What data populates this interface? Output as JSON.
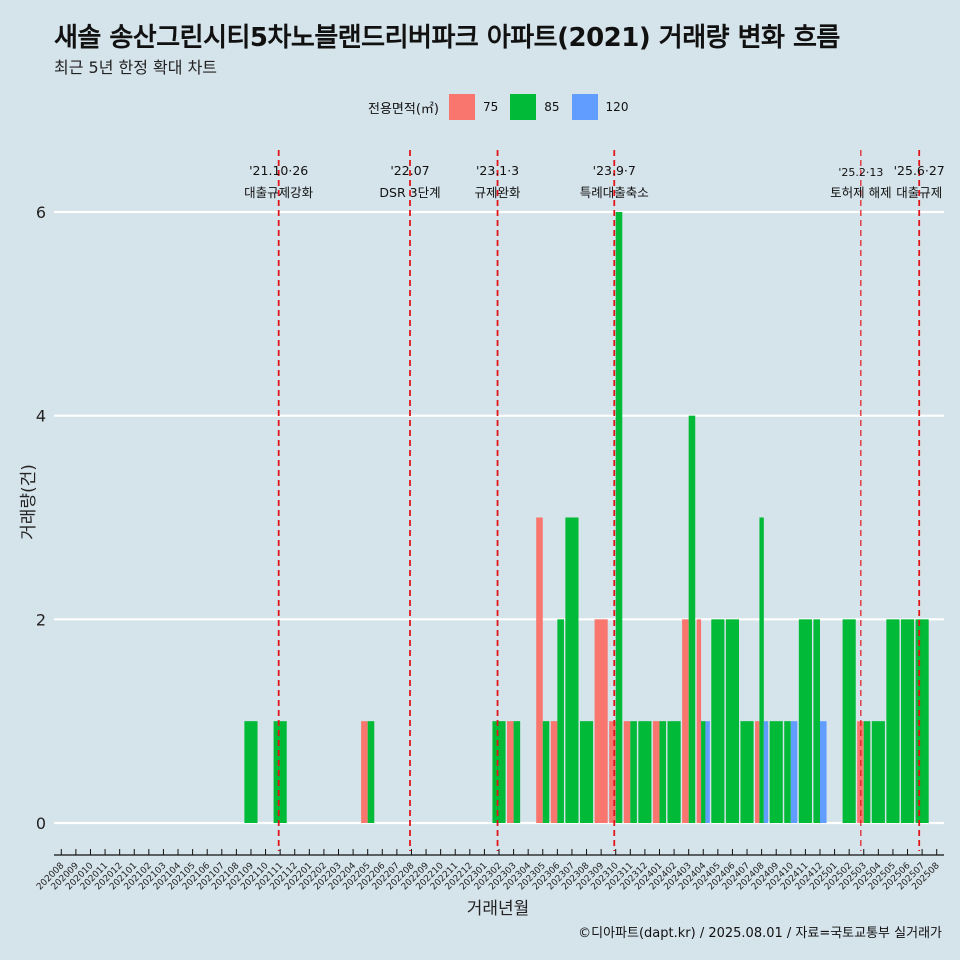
{
  "title": "새솔 송산그린시티5차노블랜드리버파크 아파트(2021) 거래량 변화 흐름",
  "subtitle": "최근 5년 한정 확대 차트",
  "caption": "©디아파트(dapt.kr) / 2025.08.01 / 자료=국토교통부 실거래가",
  "colors": {
    "75": "#f8766d",
    "85": "#00ba38",
    "120": "#619cff",
    "background": "#d5e3ea",
    "grid": "#ffffff",
    "event_line": "#e0161b"
  },
  "chart_data": {
    "type": "bar",
    "stacking": "dodge",
    "xlabel": "거래년월",
    "ylabel": "거래량(건)",
    "ylim": [
      -0.25,
      6.25
    ],
    "yticks": [
      0,
      2,
      4,
      6
    ],
    "grid": true,
    "legend": {
      "title": "전용면적(㎡)",
      "position": "top",
      "entries": [
        "75",
        "85",
        "120"
      ]
    },
    "categories": [
      "202008",
      "202009",
      "202010",
      "202011",
      "202012",
      "202101",
      "202102",
      "202103",
      "202104",
      "202105",
      "202106",
      "202107",
      "202108",
      "202109",
      "202110",
      "202111",
      "202112",
      "202201",
      "202202",
      "202203",
      "202204",
      "202205",
      "202206",
      "202207",
      "202208",
      "202209",
      "202210",
      "202211",
      "202212",
      "202301",
      "202302",
      "202303",
      "202304",
      "202305",
      "202306",
      "202307",
      "202308",
      "202309",
      "202310",
      "202311",
      "202312",
      "202401",
      "202402",
      "202403",
      "202404",
      "202405",
      "202406",
      "202407",
      "202408",
      "202409",
      "202410",
      "202411",
      "202412",
      "202501",
      "202502",
      "202503",
      "202504",
      "202505",
      "202506",
      "202507",
      "202508"
    ],
    "bars": [
      {
        "month": "202109",
        "area": "85",
        "value": 1
      },
      {
        "month": "202111",
        "area": "85",
        "value": 1
      },
      {
        "month": "202205",
        "area": "75",
        "value": 1
      },
      {
        "month": "202205",
        "area": "85",
        "value": 1
      },
      {
        "month": "202302",
        "area": "85",
        "value": 1
      },
      {
        "month": "202303",
        "area": "75",
        "value": 1
      },
      {
        "month": "202303",
        "area": "85",
        "value": 1
      },
      {
        "month": "202305",
        "area": "75",
        "value": 3
      },
      {
        "month": "202305",
        "area": "85",
        "value": 1
      },
      {
        "month": "202306",
        "area": "75",
        "value": 1
      },
      {
        "month": "202306",
        "area": "85",
        "value": 2
      },
      {
        "month": "202307",
        "area": "85",
        "value": 3
      },
      {
        "month": "202308",
        "area": "85",
        "value": 1
      },
      {
        "month": "202309",
        "area": "75",
        "value": 2
      },
      {
        "month": "202310",
        "area": "75",
        "value": 1
      },
      {
        "month": "202310",
        "area": "85",
        "value": 6
      },
      {
        "month": "202311",
        "area": "75",
        "value": 1
      },
      {
        "month": "202311",
        "area": "85",
        "value": 1
      },
      {
        "month": "202312",
        "area": "85",
        "value": 1
      },
      {
        "month": "202401",
        "area": "75",
        "value": 1
      },
      {
        "month": "202401",
        "area": "85",
        "value": 1
      },
      {
        "month": "202402",
        "area": "85",
        "value": 1
      },
      {
        "month": "202403",
        "area": "75",
        "value": 2
      },
      {
        "month": "202403",
        "area": "85",
        "value": 4
      },
      {
        "month": "202404",
        "area": "75",
        "value": 2
      },
      {
        "month": "202404",
        "area": "85",
        "value": 1
      },
      {
        "month": "202404",
        "area": "120",
        "value": 1
      },
      {
        "month": "202405",
        "area": "85",
        "value": 2
      },
      {
        "month": "202406",
        "area": "85",
        "value": 2
      },
      {
        "month": "202407",
        "area": "85",
        "value": 1
      },
      {
        "month": "202408",
        "area": "75",
        "value": 1
      },
      {
        "month": "202408",
        "area": "85",
        "value": 3
      },
      {
        "month": "202408",
        "area": "120",
        "value": 1
      },
      {
        "month": "202409",
        "area": "85",
        "value": 1
      },
      {
        "month": "202410",
        "area": "85",
        "value": 1
      },
      {
        "month": "202410",
        "area": "120",
        "value": 1
      },
      {
        "month": "202411",
        "area": "85",
        "value": 2
      },
      {
        "month": "202412",
        "area": "85",
        "value": 2
      },
      {
        "month": "202412",
        "area": "120",
        "value": 1
      },
      {
        "month": "202502",
        "area": "85",
        "value": 2
      },
      {
        "month": "202503",
        "area": "75",
        "value": 1
      },
      {
        "month": "202503",
        "area": "85",
        "value": 1
      },
      {
        "month": "202504",
        "area": "85",
        "value": 1
      },
      {
        "month": "202505",
        "area": "85",
        "value": 2
      },
      {
        "month": "202506",
        "area": "85",
        "value": 2
      },
      {
        "month": "202507",
        "area": "85",
        "value": 2
      }
    ],
    "events": [
      {
        "date": "'21.10·26",
        "label": "대출규제강화",
        "x": 14.9
      },
      {
        "date": "'22.07",
        "label": "DSR 3단계",
        "x": 23.9
      },
      {
        "date": "'23.1·3",
        "label": "규제완화",
        "x": 29.9
      },
      {
        "date": "'23.9·7",
        "label": "특례대출축소",
        "x": 37.9
      },
      {
        "date": "'25.2·13",
        "label": "토허제 해제",
        "x": 54.8
      },
      {
        "date": "'25.6·27",
        "label": "대출규제",
        "x": 58.8
      }
    ]
  }
}
